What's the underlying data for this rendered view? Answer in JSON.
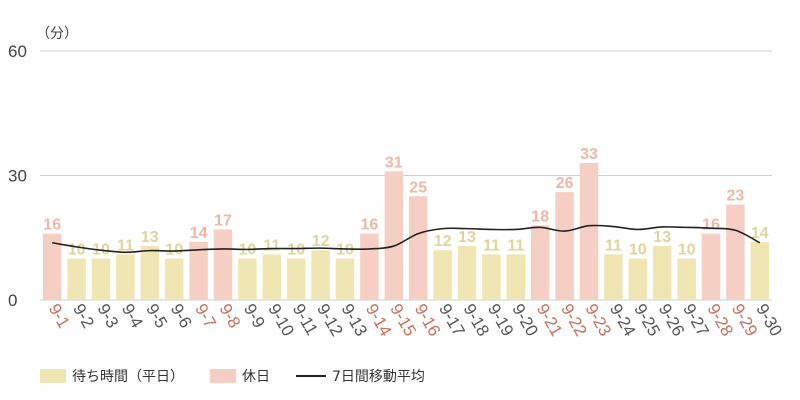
{
  "chart_data": {
    "type": "bar",
    "unit_label": "（分）",
    "ylim": [
      0,
      60
    ],
    "yticks": [
      0,
      30,
      60
    ],
    "grid": true,
    "legend_placement": "bottom-left",
    "categories": [
      "9-1",
      "9-2",
      "9-3",
      "9-4",
      "9-5",
      "9-6",
      "9-7",
      "9-8",
      "9-9",
      "9-10",
      "9-11",
      "9-12",
      "9-13",
      "9-14",
      "9-15",
      "9-16",
      "9-17",
      "9-18",
      "9-19",
      "9-20",
      "9-21",
      "9-22",
      "9-23",
      "9-24",
      "9-25",
      "9-26",
      "9-27",
      "9-28",
      "9-29",
      "9-30"
    ],
    "values": [
      16,
      10,
      10,
      11,
      13,
      10,
      14,
      17,
      10,
      11,
      10,
      12,
      10,
      16,
      31,
      25,
      12,
      13,
      11,
      11,
      18,
      26,
      33,
      11,
      10,
      13,
      10,
      16,
      23,
      14
    ],
    "holiday": [
      true,
      false,
      false,
      false,
      false,
      false,
      true,
      true,
      false,
      false,
      false,
      false,
      false,
      true,
      true,
      true,
      false,
      false,
      false,
      false,
      true,
      true,
      true,
      false,
      false,
      false,
      false,
      true,
      true,
      false
    ],
    "moving_average": [
      13.8,
      12.8,
      12.0,
      11.5,
      11.9,
      11.8,
      12.1,
      12.3,
      12.2,
      12.4,
      12.4,
      12.5,
      12.3,
      12.3,
      13.0,
      16.0,
      17.2,
      17.2,
      17.0,
      17.0,
      17.5,
      16.6,
      17.9,
      17.7,
      17.0,
      17.6,
      17.5,
      17.3,
      16.8,
      13.8
    ],
    "series": [
      {
        "name": "待ち時間（平日）",
        "color": "#f0e6b4"
      },
      {
        "name": "休日",
        "color": "#f5cfc4"
      },
      {
        "name": "7日間移動平均",
        "color": "#222222"
      }
    ],
    "colors": {
      "weekday_bar": "#f0e6b4",
      "holiday_bar": "#f5cfc4",
      "weekday_label": "#e0d49a",
      "holiday_label": "#f0b7a4",
      "weekday_tick": "#555555",
      "holiday_tick": "#c8705a",
      "grid": "#cfcfcf",
      "axis_text": "#444444"
    }
  }
}
